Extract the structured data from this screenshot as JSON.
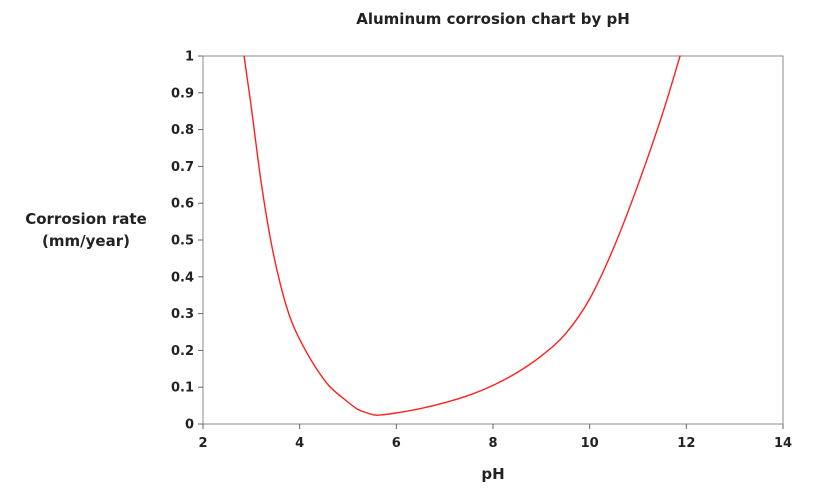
{
  "chart_data": {
    "type": "line",
    "title": "Aluminum corrosion chart by pH",
    "xlabel": "pH",
    "ylabel_lines": [
      "Corrosion rate",
      "(mm/year)"
    ],
    "xlim": [
      2,
      14
    ],
    "ylim": [
      0,
      1
    ],
    "x_ticks": [
      2,
      4,
      6,
      8,
      10,
      12,
      14
    ],
    "y_ticks": [
      0,
      0.1,
      0.2,
      0.3,
      0.4,
      0.5,
      0.6,
      0.7,
      0.8,
      0.9,
      1
    ],
    "y_tick_labels": [
      "0",
      "0.1",
      "0.2",
      "0.3",
      "0.4",
      "0.5",
      "0.6",
      "0.7",
      "0.8",
      "0.9",
      "1"
    ],
    "grid": false,
    "series": [
      {
        "color": "#ff2020",
        "x": [
          2.85,
          3.0,
          3.2,
          3.4,
          3.6,
          3.8,
          4.0,
          4.3,
          4.6,
          4.9,
          5.2,
          5.4,
          5.6,
          6.0,
          6.5,
          7.0,
          7.5,
          8.0,
          8.5,
          9.0,
          9.5,
          10.0,
          10.5,
          11.0,
          11.5,
          11.87
        ],
        "y": [
          1.0,
          0.86,
          0.66,
          0.5,
          0.38,
          0.29,
          0.23,
          0.16,
          0.105,
          0.07,
          0.04,
          0.03,
          0.024,
          0.03,
          0.042,
          0.058,
          0.078,
          0.105,
          0.14,
          0.185,
          0.245,
          0.34,
          0.48,
          0.65,
          0.84,
          1.0
        ]
      }
    ]
  }
}
